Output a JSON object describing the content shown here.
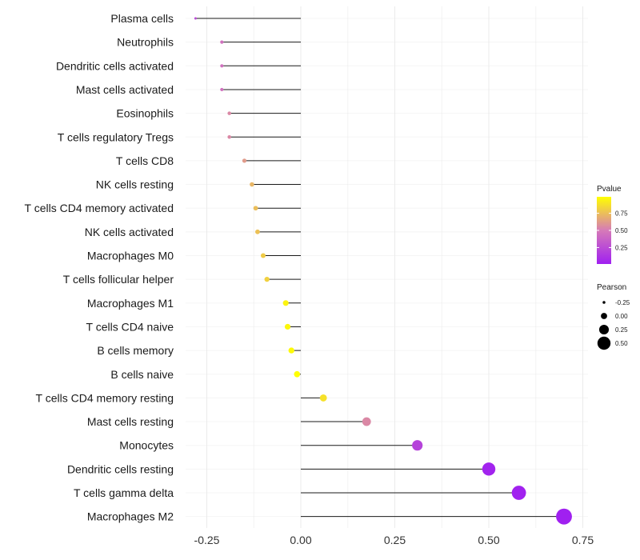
{
  "chart_data": {
    "type": "lollipop",
    "categories": [
      "Plasma cells",
      "Neutrophils",
      "Dendritic cells activated",
      "Mast cells activated",
      "Eosinophils",
      "T cells regulatory  Tregs",
      "T cells CD8",
      "NK cells resting",
      "T cells CD4 memory activated",
      "NK cells activated",
      "Macrophages M0",
      "T cells follicular helper",
      "Macrophages M1",
      "T cells CD4 naive",
      "B cells memory",
      "B cells naive",
      "T cells CD4 memory resting",
      "Mast cells resting",
      "Monocytes",
      "Dendritic cells resting",
      "T cells gamma delta",
      "Macrophages M2"
    ],
    "pearson": [
      -0.28,
      -0.21,
      -0.21,
      -0.21,
      -0.19,
      -0.19,
      -0.15,
      -0.13,
      -0.12,
      -0.115,
      -0.1,
      -0.09,
      -0.04,
      -0.035,
      -0.025,
      -0.01,
      0.06,
      0.175,
      0.31,
      0.5,
      0.58,
      0.7
    ],
    "pvalue": [
      0.25,
      0.45,
      0.45,
      0.45,
      0.55,
      0.55,
      0.62,
      0.72,
      0.75,
      0.76,
      0.8,
      0.82,
      0.95,
      0.96,
      0.97,
      0.99,
      0.88,
      0.55,
      0.2,
      0.03,
      0.02,
      0.01
    ],
    "xlim": [
      -0.28,
      0.75
    ],
    "xticks": [
      -0.25,
      0.0,
      0.25,
      0.5,
      0.75
    ],
    "xtick_labels": [
      "-0.25",
      "0.00",
      "0.25",
      "0.50",
      "0.75"
    ],
    "xlabel": "",
    "ylabel": "",
    "grid": true,
    "legend_color": {
      "title": "Pvalue",
      "labels": [
        "0.75",
        "0.50",
        "0.25"
      ],
      "values": [
        0.75,
        0.5,
        0.25
      ],
      "range": [
        0.01,
        0.99
      ],
      "low_color": "#a020f0",
      "mid_color": "#d67ab8",
      "high_color": "#ffff00"
    },
    "legend_size": {
      "title": "Pearson",
      "labels": [
        "-0.25",
        "0.00",
        "0.25",
        "0.50"
      ],
      "values": [
        -0.25,
        0.0,
        0.25,
        0.5
      ]
    },
    "legend_position": "right"
  }
}
